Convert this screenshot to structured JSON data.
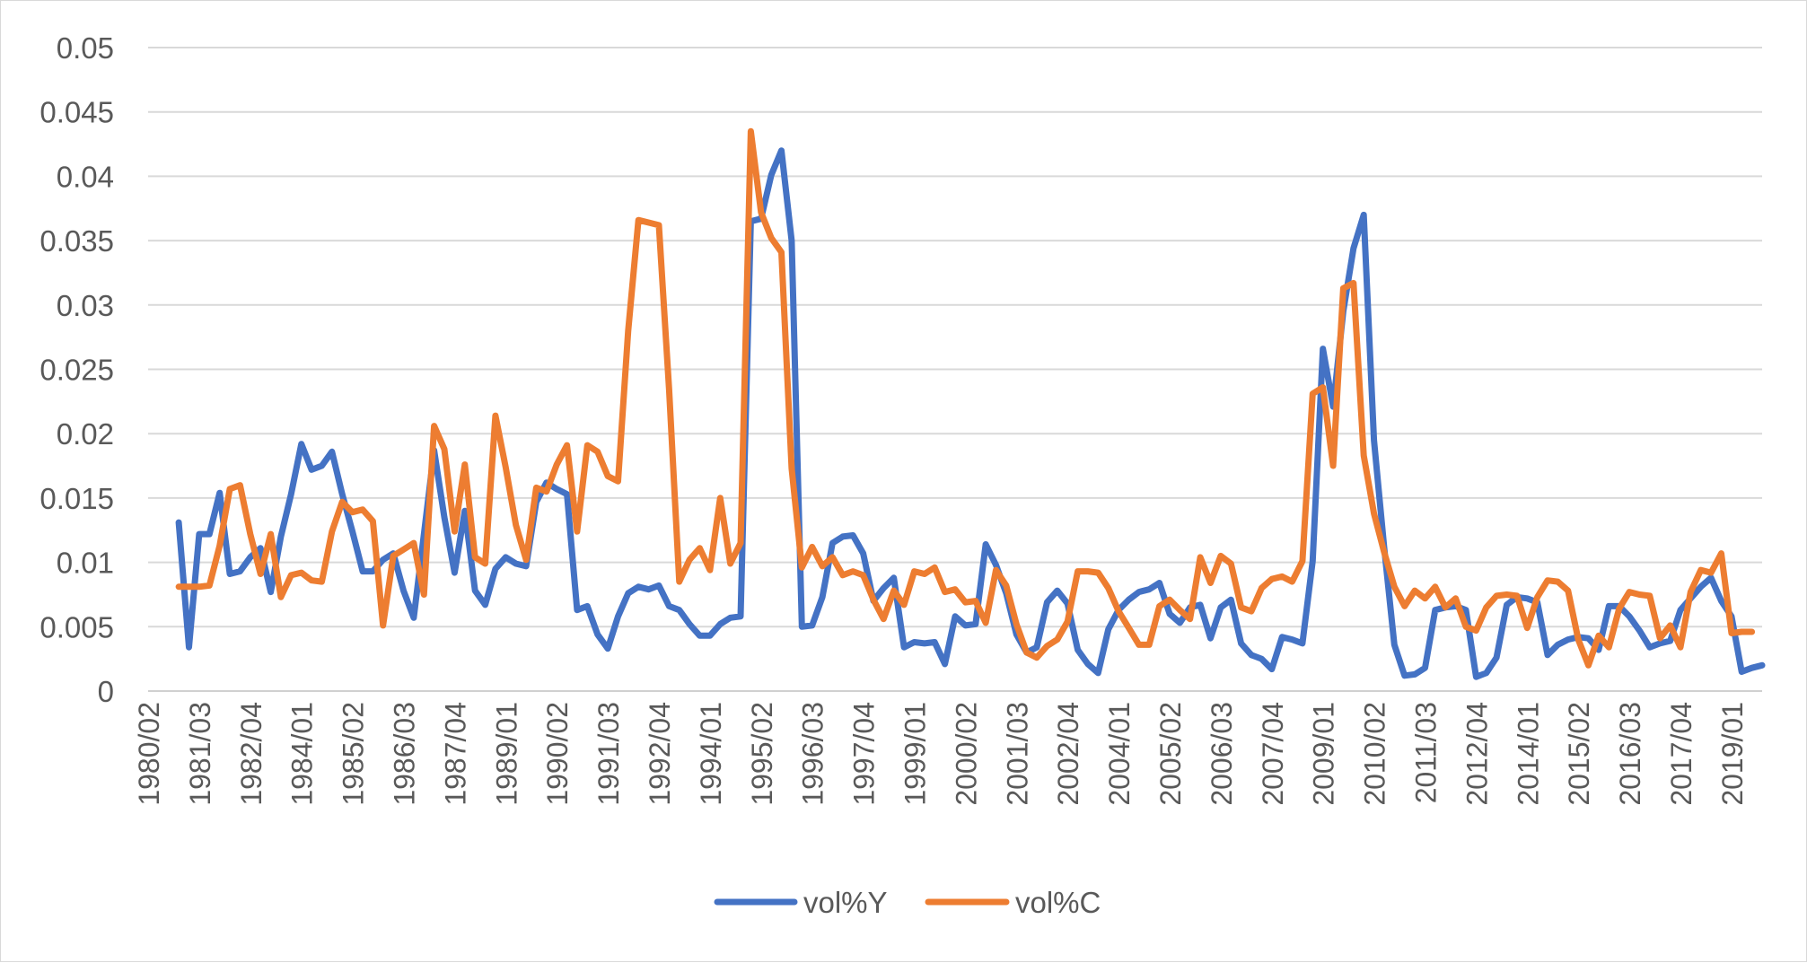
{
  "chart_data": {
    "type": "line",
    "title": "",
    "xlabel": "",
    "ylabel": "",
    "ylim": [
      0,
      0.05
    ],
    "y_ticks": [
      "0",
      "0.005",
      "0.01",
      "0.015",
      "0.02",
      "0.025",
      "0.03",
      "0.035",
      "0.04",
      "0.045",
      "0.05"
    ],
    "x_tick_labels": [
      "1980/02",
      "1981/03",
      "1982/04",
      "1984/01",
      "1985/02",
      "1986/03",
      "1987/04",
      "1989/01",
      "1990/02",
      "1991/03",
      "1992/04",
      "1994/01",
      "1995/02",
      "1996/03",
      "1997/04",
      "1999/01",
      "2000/02",
      "2001/03",
      "2002/04",
      "2004/01",
      "2005/02",
      "2006/03",
      "2007/04",
      "2009/01",
      "2010/02",
      "2011/03",
      "2012/04",
      "2014/01",
      "2015/02",
      "2016/03",
      "2017/04",
      "2019/01"
    ],
    "x_start": "1980/02",
    "x_end": "2019/04",
    "grid": true,
    "legend": "bottom",
    "series": [
      {
        "name": "vol%Y",
        "color": "#4472C4",
        "start": "1981/01",
        "values": [
          0.0131,
          0.0034,
          0.0122,
          0.0122,
          0.0154,
          0.0091,
          0.0093,
          0.0104,
          0.0111,
          0.0077,
          0.012,
          0.0153,
          0.0192,
          0.0172,
          0.0175,
          0.0186,
          0.0153,
          0.0124,
          0.0093,
          0.0093,
          0.0102,
          0.0107,
          0.0078,
          0.0057,
          0.0122,
          0.0187,
          0.0135,
          0.0092,
          0.014,
          0.0078,
          0.0067,
          0.0095,
          0.0104,
          0.0099,
          0.0097,
          0.0147,
          0.0162,
          0.0157,
          0.0153,
          0.0063,
          0.0066,
          0.0044,
          0.0033,
          0.0058,
          0.0076,
          0.0081,
          0.0079,
          0.0082,
          0.0066,
          0.0063,
          0.0052,
          0.0043,
          0.0043,
          0.0052,
          0.0057,
          0.0058,
          0.0365,
          0.0367,
          0.0401,
          0.042,
          0.035,
          0.005,
          0.0051,
          0.0073,
          0.0115,
          0.012,
          0.0121,
          0.0107,
          0.007,
          0.008,
          0.0088,
          0.0034,
          0.0038,
          0.0037,
          0.0038,
          0.0021,
          0.0058,
          0.0051,
          0.0052,
          0.0114,
          0.0098,
          0.0076,
          0.0044,
          0.003,
          0.0034,
          0.0069,
          0.0078,
          0.0068,
          0.0032,
          0.0021,
          0.0014,
          0.0048,
          0.0063,
          0.0071,
          0.0077,
          0.0079,
          0.0084,
          0.006,
          0.0053,
          0.0065,
          0.0067,
          0.0041,
          0.0065,
          0.0071,
          0.0037,
          0.0028,
          0.0025,
          0.0017,
          0.0042,
          0.004,
          0.0037,
          0.0101,
          0.0266,
          0.0221,
          0.0295,
          0.0344,
          0.037,
          0.0195,
          0.0112,
          0.0036,
          0.0012,
          0.0013,
          0.0018,
          0.0063,
          0.0065,
          0.0066,
          0.0063,
          0.0011,
          0.0014,
          0.0026,
          0.0067,
          0.0073,
          0.0072,
          0.0069,
          0.0028,
          0.0036,
          0.004,
          0.0042,
          0.0041,
          0.0032,
          0.0066,
          0.0066,
          0.0058,
          0.0047,
          0.0034,
          0.0037,
          0.0039,
          0.0063,
          0.0072,
          0.0081,
          0.0088,
          0.007,
          0.0058,
          0.0015,
          0.0018,
          0.002
        ]
      },
      {
        "name": "vol%C",
        "color": "#ED7D31",
        "start": "1981/01",
        "values": [
          0.0081,
          0.0081,
          0.0081,
          0.0082,
          0.0113,
          0.0157,
          0.016,
          0.0122,
          0.0091,
          0.0122,
          0.0073,
          0.009,
          0.0092,
          0.0086,
          0.0085,
          0.0124,
          0.0147,
          0.0139,
          0.0141,
          0.0132,
          0.0051,
          0.0105,
          0.011,
          0.0115,
          0.0075,
          0.0206,
          0.0188,
          0.0124,
          0.0176,
          0.0104,
          0.0099,
          0.0214,
          0.0174,
          0.0129,
          0.0102,
          0.0158,
          0.0155,
          0.0176,
          0.0191,
          0.0124,
          0.0191,
          0.0186,
          0.0167,
          0.0163,
          0.028,
          0.0366,
          0.0364,
          0.0362,
          0.0234,
          0.0085,
          0.0102,
          0.0111,
          0.0094,
          0.015,
          0.0099,
          0.0115,
          0.0435,
          0.0372,
          0.0352,
          0.0341,
          0.0173,
          0.0096,
          0.0112,
          0.0097,
          0.0104,
          0.009,
          0.0093,
          0.009,
          0.0071,
          0.0056,
          0.0078,
          0.0067,
          0.0093,
          0.0091,
          0.0096,
          0.0077,
          0.0079,
          0.0069,
          0.007,
          0.0053,
          0.0094,
          0.0082,
          0.0052,
          0.003,
          0.0026,
          0.0035,
          0.004,
          0.0054,
          0.0093,
          0.0093,
          0.0092,
          0.008,
          0.0062,
          0.0049,
          0.0036,
          0.0036,
          0.0066,
          0.0071,
          0.0063,
          0.0056,
          0.0104,
          0.0084,
          0.0105,
          0.0099,
          0.0065,
          0.0062,
          0.008,
          0.0087,
          0.0089,
          0.0085,
          0.0101,
          0.0231,
          0.0236,
          0.0175,
          0.0313,
          0.0317,
          0.0183,
          0.0138,
          0.0108,
          0.0081,
          0.0066,
          0.0078,
          0.0072,
          0.0081,
          0.0065,
          0.0072,
          0.005,
          0.0047,
          0.0065,
          0.0074,
          0.0075,
          0.0074,
          0.0049,
          0.0073,
          0.0086,
          0.0085,
          0.0078,
          0.004,
          0.002,
          0.0043,
          0.0034,
          0.0064,
          0.0077,
          0.0075,
          0.0074,
          0.0041,
          0.0051,
          0.0034,
          0.0077,
          0.0094,
          0.0092,
          0.0107,
          0.0045,
          0.0046,
          0.0046
        ]
      }
    ]
  }
}
